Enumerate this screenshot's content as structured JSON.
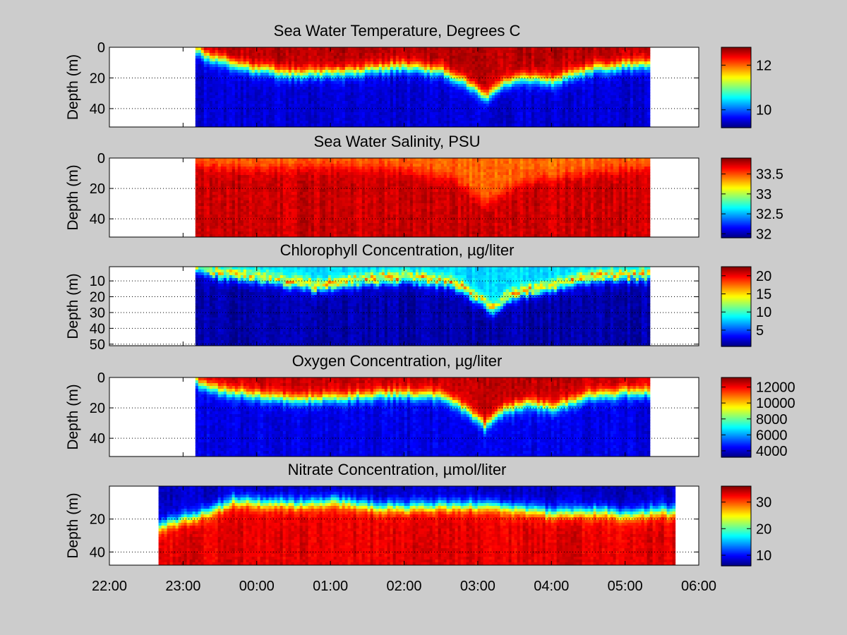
{
  "figure": {
    "background": "#cccccc",
    "colormap": "jet"
  },
  "chart_data": [
    {
      "type": "heatmap",
      "title": "Sea Water Temperature, Degrees C",
      "ylabel": "Depth (m)",
      "y_ticks": [
        "0",
        "20",
        "40"
      ],
      "y_tick_values": [
        0,
        20,
        40
      ],
      "ylim": [
        0,
        52
      ],
      "y_reversed": true,
      "grid": "horizontal dotted",
      "data_time_range": [
        "23:10",
        "05:20"
      ],
      "colorbar": {
        "min": 9.2,
        "max": 12.8,
        "ticks": [
          "12",
          "10"
        ],
        "tick_values": [
          12,
          10
        ]
      },
      "surface_value": 12.6,
      "deep_value": 9.5,
      "mixed_layer_depth": [
        {
          "time": "23:10",
          "depth": 2
        },
        {
          "time": "23:20",
          "depth": 7
        },
        {
          "time": "23:40",
          "depth": 12
        },
        {
          "time": "00:00",
          "depth": 15
        },
        {
          "time": "00:30",
          "depth": 18
        },
        {
          "time": "01:00",
          "depth": 17
        },
        {
          "time": "01:30",
          "depth": 15
        },
        {
          "time": "02:00",
          "depth": 13
        },
        {
          "time": "02:30",
          "depth": 16
        },
        {
          "time": "02:50",
          "depth": 24
        },
        {
          "time": "03:05",
          "depth": 33
        },
        {
          "time": "03:20",
          "depth": 24
        },
        {
          "time": "03:40",
          "depth": 20
        },
        {
          "time": "04:00",
          "depth": 22
        },
        {
          "time": "04:30",
          "depth": 15
        },
        {
          "time": "05:00",
          "depth": 12
        },
        {
          "time": "05:20",
          "depth": 11
        }
      ]
    },
    {
      "type": "heatmap",
      "title": "Sea Water Salinity, PSU",
      "ylabel": "Depth (m)",
      "y_ticks": [
        "0",
        "20",
        "40"
      ],
      "y_tick_values": [
        0,
        20,
        40
      ],
      "ylim": [
        0,
        52
      ],
      "y_reversed": true,
      "grid": "horizontal dotted",
      "data_time_range": [
        "23:10",
        "05:20"
      ],
      "colorbar": {
        "min": 31.9,
        "max": 33.9,
        "ticks": [
          "33.5",
          "33",
          "32.5",
          "32"
        ],
        "tick_values": [
          33.5,
          33,
          32.5,
          32
        ]
      },
      "surface_value": 33.45,
      "deep_value": 33.75,
      "mixed_layer_depth": [
        {
          "time": "23:10",
          "depth": 5
        },
        {
          "time": "00:00",
          "depth": 7
        },
        {
          "time": "01:00",
          "depth": 6
        },
        {
          "time": "02:00",
          "depth": 8
        },
        {
          "time": "02:40",
          "depth": 14
        },
        {
          "time": "03:05",
          "depth": 30
        },
        {
          "time": "03:30",
          "depth": 18
        },
        {
          "time": "04:00",
          "depth": 12
        },
        {
          "time": "05:00",
          "depth": 8
        },
        {
          "time": "05:20",
          "depth": 6
        }
      ]
    },
    {
      "type": "heatmap",
      "title": "Chlorophyll Concentration, µg/liter",
      "ylabel": "Depth (m)",
      "y_ticks": [
        "10",
        "20",
        "30",
        "40",
        "50"
      ],
      "y_tick_values": [
        10,
        20,
        30,
        40,
        50
      ],
      "ylim": [
        1,
        51
      ],
      "y_reversed": true,
      "grid": "horizontal dotted",
      "data_time_range": [
        "23:10",
        "05:20"
      ],
      "colorbar": {
        "min": 0.5,
        "max": 22.5,
        "ticks": [
          "20",
          "15",
          "10",
          "5"
        ],
        "tick_values": [
          20,
          15,
          10,
          5
        ]
      },
      "surface_value": 8,
      "deep_value": 1.5,
      "subsurface_peak_value": 19,
      "mixed_layer_depth": [
        {
          "time": "23:10",
          "depth": 4
        },
        {
          "time": "23:30",
          "depth": 8
        },
        {
          "time": "00:00",
          "depth": 10
        },
        {
          "time": "00:45",
          "depth": 16
        },
        {
          "time": "01:30",
          "depth": 12
        },
        {
          "time": "02:00",
          "depth": 10
        },
        {
          "time": "02:40",
          "depth": 14
        },
        {
          "time": "03:00",
          "depth": 24
        },
        {
          "time": "03:10",
          "depth": 30
        },
        {
          "time": "03:30",
          "depth": 20
        },
        {
          "time": "04:00",
          "depth": 16
        },
        {
          "time": "04:30",
          "depth": 10
        },
        {
          "time": "05:00",
          "depth": 9
        },
        {
          "time": "05:20",
          "depth": 9
        }
      ]
    },
    {
      "type": "heatmap",
      "title": "Oxygen Concentration, µg/liter",
      "ylabel": "Depth (m)",
      "y_ticks": [
        "0",
        "20",
        "40"
      ],
      "y_tick_values": [
        0,
        20,
        40
      ],
      "ylim": [
        0,
        52
      ],
      "y_reversed": true,
      "grid": "horizontal dotted",
      "data_time_range": [
        "23:10",
        "05:20"
      ],
      "colorbar": {
        "min": 3200,
        "max": 13200,
        "ticks": [
          "12000",
          "10000",
          "8000",
          "6000",
          "4000"
        ],
        "tick_values": [
          12000,
          10000,
          8000,
          6000,
          4000
        ]
      },
      "surface_value": 12500,
      "deep_value": 4200,
      "mixed_layer_depth": [
        {
          "time": "23:10",
          "depth": 3
        },
        {
          "time": "23:30",
          "depth": 9
        },
        {
          "time": "00:00",
          "depth": 12
        },
        {
          "time": "00:30",
          "depth": 15
        },
        {
          "time": "01:00",
          "depth": 14
        },
        {
          "time": "01:30",
          "depth": 12
        },
        {
          "time": "02:00",
          "depth": 11
        },
        {
          "time": "02:30",
          "depth": 13
        },
        {
          "time": "02:50",
          "depth": 22
        },
        {
          "time": "03:05",
          "depth": 32
        },
        {
          "time": "03:20",
          "depth": 22
        },
        {
          "time": "03:40",
          "depth": 18
        },
        {
          "time": "04:00",
          "depth": 20
        },
        {
          "time": "04:30",
          "depth": 13
        },
        {
          "time": "05:00",
          "depth": 10
        },
        {
          "time": "05:20",
          "depth": 10
        }
      ]
    },
    {
      "type": "heatmap",
      "title": "Nitrate Concentration, µmol/liter",
      "ylabel": "Depth (m)",
      "y_ticks": [
        "20",
        "40"
      ],
      "y_tick_values": [
        20,
        40
      ],
      "ylim": [
        0,
        48
      ],
      "y_reversed": true,
      "grid": "horizontal dotted",
      "data_time_range": [
        "22:40",
        "05:40"
      ],
      "colorbar": {
        "min": 6,
        "max": 36,
        "ticks": [
          "30",
          "20",
          "10"
        ],
        "tick_values": [
          30,
          20,
          10
        ]
      },
      "surface_value": 8,
      "deep_value": 33,
      "mixed_layer_depth": [
        {
          "time": "22:40",
          "depth": 24
        },
        {
          "time": "23:00",
          "depth": 20
        },
        {
          "time": "23:20",
          "depth": 16
        },
        {
          "time": "23:40",
          "depth": 9
        },
        {
          "time": "00:00",
          "depth": 10
        },
        {
          "time": "00:30",
          "depth": 11
        },
        {
          "time": "01:00",
          "depth": 9
        },
        {
          "time": "01:30",
          "depth": 12
        },
        {
          "time": "02:00",
          "depth": 13
        },
        {
          "time": "02:30",
          "depth": 12
        },
        {
          "time": "03:00",
          "depth": 12
        },
        {
          "time": "03:30",
          "depth": 14
        },
        {
          "time": "04:00",
          "depth": 16
        },
        {
          "time": "04:30",
          "depth": 15
        },
        {
          "time": "05:00",
          "depth": 17
        },
        {
          "time": "05:40",
          "depth": 15
        }
      ]
    }
  ],
  "x_axis": {
    "ticks": [
      "22:00",
      "23:00",
      "00:00",
      "01:00",
      "02:00",
      "03:00",
      "04:00",
      "05:00",
      "06:00"
    ],
    "range": [
      "22:00",
      "06:00"
    ]
  }
}
